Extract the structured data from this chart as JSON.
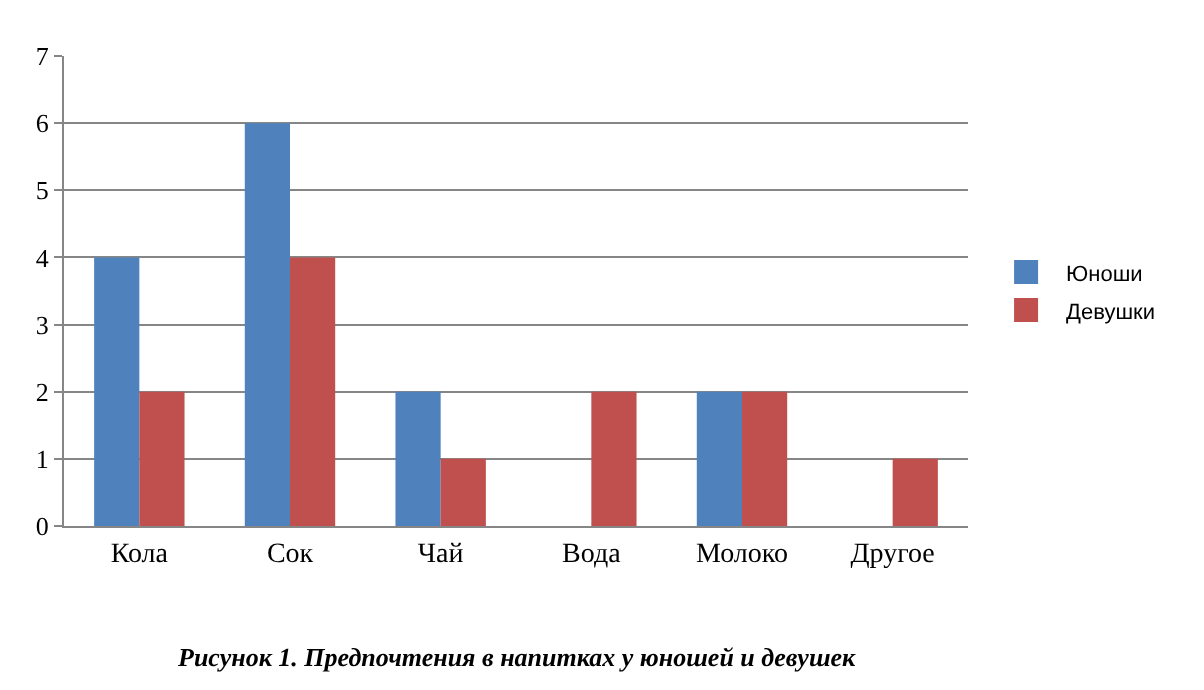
{
  "chart_data": {
    "type": "bar",
    "categories": [
      "Кола",
      "Сок",
      "Чай",
      "Вода",
      "Молоко",
      "Другое"
    ],
    "series": [
      {
        "name": "Юноши",
        "color": "#4f81bd",
        "values": [
          4,
          6,
          2,
          0,
          2,
          0
        ]
      },
      {
        "name": "Девушки",
        "color": "#c0504d",
        "values": [
          2,
          4,
          1,
          2,
          2,
          1
        ]
      }
    ],
    "ylim": [
      0,
      7
    ],
    "yticks": [
      0,
      1,
      2,
      3,
      4,
      5,
      6,
      7
    ],
    "grid": "y",
    "legend": "right",
    "annotations": [
      "Рисунок 1. Предпочтения в напитках у юношей и девушек"
    ]
  }
}
